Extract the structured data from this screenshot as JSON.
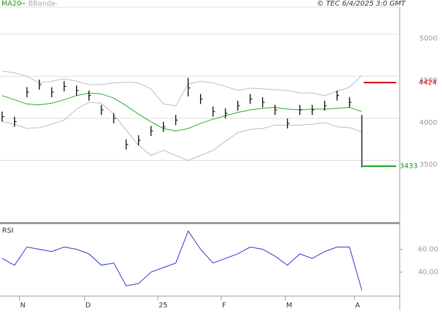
{
  "chart_data": {
    "type": "ohlc",
    "legend": [
      "MA20",
      "BBands"
    ],
    "credit": "© TEC 6/4/2025 3:0 GMT",
    "xlim": [
      -0.17,
      32.05
    ],
    "xticks": [
      {
        "value": 1.4,
        "label": "N"
      },
      {
        "value": 6.65,
        "label": "D"
      },
      {
        "value": 12.56,
        "label": "25"
      },
      {
        "value": 17.67,
        "label": "F"
      },
      {
        "value": 22.84,
        "label": "M"
      },
      {
        "value": 28.4,
        "label": "A"
      }
    ],
    "ylim": [
      2770,
      5320
    ],
    "yticks": [
      3500,
      4000,
      4500,
      5000
    ],
    "high": [
      4080,
      4020,
      4370,
      4460,
      4370,
      4440,
      4390,
      4330,
      4160,
      4060,
      3750,
      3800,
      3910,
      3960,
      4040,
      4480,
      4290,
      4140,
      4120,
      4210,
      4290,
      4250,
      4160,
      4000,
      4160,
      4160,
      4210,
      4330,
      4250,
      4040
    ],
    "low": [
      3960,
      3900,
      4250,
      4340,
      4250,
      4320,
      4270,
      4210,
      4040,
      3940,
      3630,
      3680,
      3790,
      3840,
      3920,
      4260,
      4170,
      4020,
      4000,
      4090,
      4170,
      4130,
      4040,
      3880,
      4040,
      4040,
      4090,
      4210,
      4130,
      3420
    ],
    "close": [
      4020,
      3960,
      4310,
      4400,
      4310,
      4380,
      4330,
      4270,
      4100,
      4000,
      3690,
      3740,
      3850,
      3900,
      3980,
      4360,
      4230,
      4080,
      4060,
      4150,
      4230,
      4190,
      4100,
      3940,
      4100,
      4100,
      4150,
      4270,
      4190,
      3430
    ],
    "ma": {
      "name": "MA20",
      "color": "#22aa22",
      "values": [
        4270,
        4220,
        4170,
        4160,
        4180,
        4220,
        4270,
        4300,
        4290,
        4240,
        4150,
        4050,
        3960,
        3880,
        3850,
        3880,
        3940,
        3990,
        4030,
        4070,
        4100,
        4120,
        4130,
        4110,
        4100,
        4110,
        4110,
        4120,
        4130,
        4080
      ]
    },
    "upper": [
      4560,
      4540,
      4500,
      4420,
      4440,
      4470,
      4440,
      4400,
      4400,
      4420,
      4430,
      4420,
      4350,
      4170,
      4150,
      4410,
      4440,
      4420,
      4380,
      4330,
      4360,
      4350,
      4340,
      4330,
      4300,
      4300,
      4270,
      4320,
      4370,
      4510
    ],
    "lower": [
      3960,
      3930,
      3880,
      3890,
      3930,
      3980,
      4110,
      4190,
      4180,
      4050,
      3860,
      3680,
      3560,
      3620,
      3560,
      3500,
      3560,
      3620,
      3730,
      3830,
      3870,
      3880,
      3920,
      3920,
      3920,
      3930,
      3950,
      3900,
      3890,
      3840
    ],
    "band_color": "#bbbbbb",
    "levels": [
      {
        "value": 4424,
        "label": "4424",
        "color": "#cc0000"
      },
      {
        "value": 3433,
        "label": "3433",
        "color": "#119911"
      }
    ],
    "rsi": {
      "name": "RSI",
      "color": "#2233cc",
      "ylim": [
        19,
        82
      ],
      "yticks": [
        {
          "value": 40,
          "label": "40.00"
        },
        {
          "value": 60,
          "label": "60.00"
        }
      ],
      "values": [
        52,
        46,
        62,
        60,
        58,
        62,
        60,
        56,
        46,
        48,
        28,
        30,
        40,
        44,
        48,
        76,
        60,
        48,
        52,
        56,
        62,
        60,
        54,
        46,
        56,
        52,
        58,
        62,
        62,
        24
      ]
    }
  }
}
